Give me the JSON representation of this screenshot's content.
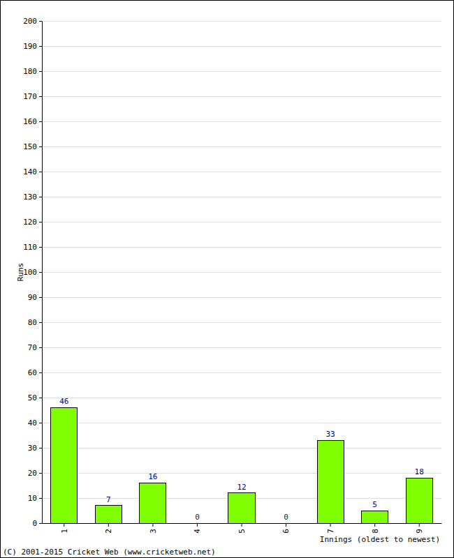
{
  "chart_data": {
    "type": "bar",
    "categories": [
      "1",
      "2",
      "3",
      "4",
      "5",
      "6",
      "7",
      "8",
      "9"
    ],
    "values": [
      46,
      7,
      16,
      0,
      12,
      0,
      33,
      5,
      18
    ],
    "color": "#80ff00",
    "ylim": [
      0,
      200
    ],
    "yticks": [
      0,
      10,
      20,
      30,
      40,
      50,
      60,
      70,
      80,
      90,
      100,
      110,
      120,
      130,
      140,
      150,
      160,
      170,
      180,
      190,
      200
    ],
    "grid": true,
    "data_labels": true,
    "x_label": "Innings (oldest to newest)",
    "y_label": "Runs",
    "annotations": [
      "(C) 2001-2015 Cricket Web (www.cricketweb.net)"
    ]
  }
}
